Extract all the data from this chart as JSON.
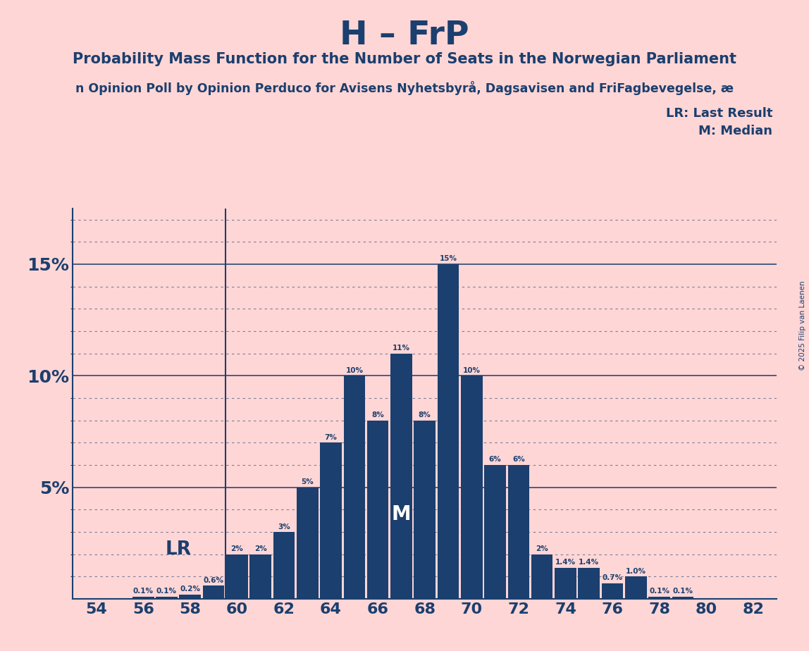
{
  "title": "H – FrP",
  "subtitle": "Probability Mass Function for the Number of Seats in the Norwegian Parliament",
  "source_line": "n Opinion Poll by Opinion Perduco for Avisens Nyhetsbyrå, Dagsavisen and FriFagbevegelse, æ",
  "copyright": "© 2025 Filip van Laenen",
  "background_color": "#FFD6D6",
  "bar_color": "#1b3f6e",
  "text_color": "#1b3f6e",
  "grid_color": "#1b3f6e",
  "seats": [
    54,
    55,
    56,
    57,
    58,
    59,
    60,
    61,
    62,
    63,
    64,
    65,
    66,
    67,
    68,
    69,
    70,
    71,
    72,
    73,
    74,
    75,
    76,
    77,
    78,
    79,
    80,
    81,
    82
  ],
  "probs": [
    0.0,
    0.0,
    0.001,
    0.001,
    0.002,
    0.006,
    0.02,
    0.02,
    0.03,
    0.05,
    0.07,
    0.1,
    0.08,
    0.11,
    0.08,
    0.15,
    0.1,
    0.06,
    0.06,
    0.02,
    0.014,
    0.014,
    0.007,
    0.01,
    0.001,
    0.001,
    0.0,
    0.0,
    0.0
  ],
  "prob_labels": [
    "0%",
    "0%",
    "0.1%",
    "0.1%",
    "0.2%",
    "0.6%",
    "2%",
    "2%",
    "3%",
    "5%",
    "7%",
    "10%",
    "8%",
    "11%",
    "8%",
    "15%",
    "10%",
    "6%",
    "6%",
    "2%",
    "1.4%",
    "1.4%",
    "0.7%",
    "1.0%",
    "0.1%",
    "0.1%",
    "0%",
    "0%",
    "0%"
  ],
  "lr_seat": 59.5,
  "lr_label": "LR",
  "median_seat": 67,
  "median_label": "M",
  "yticks": [
    0,
    0.05,
    0.1,
    0.15
  ],
  "ytick_labels": [
    "",
    "5%",
    "10%",
    "15%"
  ],
  "ylim": [
    0,
    0.175
  ],
  "legend_lr": "LR: Last Result",
  "legend_m": "M: Median"
}
